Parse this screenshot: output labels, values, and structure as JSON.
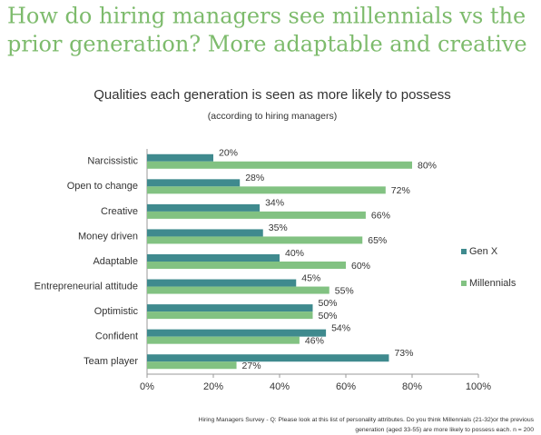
{
  "headline": [
    "How do hiring managers see millennials vs the",
    "prior generation? More adaptable and creative"
  ],
  "chart_data": {
    "type": "barh",
    "title": "Qualities each generation is seen as more likely to possess",
    "subtitle": "(according to hiring managers)",
    "categories": [
      "Narcissistic",
      "Open to change",
      "Creative",
      "Money driven",
      "Adaptable",
      "Entrepreneurial attitude",
      "Optimistic",
      "Confident",
      "Team player"
    ],
    "series": [
      {
        "name": "Gen X",
        "color": "#3f8a8e",
        "values": [
          20,
          28,
          34,
          35,
          40,
          45,
          50,
          54,
          73
        ],
        "value_labels": [
          "20%",
          "28%",
          "34%",
          "35%",
          "40%",
          "45%",
          "50%",
          "54%",
          "73%"
        ]
      },
      {
        "name": "Millennials",
        "color": "#82c282",
        "values": [
          80,
          72,
          66,
          65,
          60,
          55,
          50,
          46,
          27
        ],
        "value_labels": [
          "80%",
          "72%",
          "66%",
          "65%",
          "60%",
          "55%",
          "50%",
          "46%",
          "27%"
        ]
      }
    ],
    "xlim": [
      0,
      100
    ],
    "xticks": [
      {
        "value": 0,
        "label": "0%"
      },
      {
        "value": 20,
        "label": "20%"
      },
      {
        "value": 40,
        "label": "40%"
      },
      {
        "value": 60,
        "label": "60%"
      },
      {
        "value": 80,
        "label": "80%"
      },
      {
        "value": 100,
        "label": "100%"
      }
    ],
    "legend": "right",
    "footnote": [
      "Hiring Managers Survey - Q:  Please look at this list of personality attributes. Do you think Millennials (21-32)or the previous",
      "generation (aged 33-55) are more likely to possess each.  n = 200"
    ]
  }
}
